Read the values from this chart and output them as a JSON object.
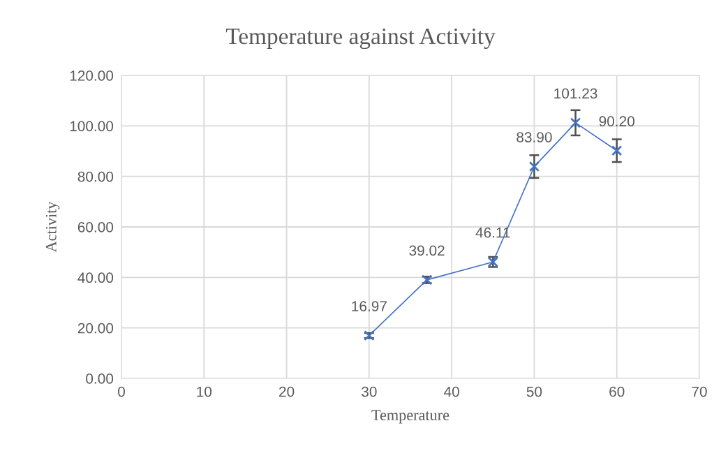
{
  "chart_data": {
    "type": "line",
    "title": "Temperature against Activity",
    "xlabel": "Temperature",
    "ylabel": "Activity",
    "x": [
      30,
      37,
      45,
      50,
      55,
      60
    ],
    "series": [
      {
        "color": "#4472c4",
        "values": [
          16.97,
          39.02,
          46.11,
          83.9,
          101.23,
          90.2
        ],
        "errors": [
          1,
          1.3,
          2,
          4.5,
          5,
          4.5
        ],
        "value_labels": [
          "16.97",
          "39.02",
          "46.11",
          "83.90",
          "101.23",
          "90.20"
        ]
      }
    ],
    "xlim": [
      0,
      70
    ],
    "xticks": [
      0,
      10,
      20,
      30,
      40,
      50,
      60,
      70
    ],
    "ylim": [
      0,
      120
    ],
    "yticks": [
      {
        "value": 0,
        "label": "0.00"
      },
      {
        "value": 20,
        "label": "20.00"
      },
      {
        "value": 40,
        "label": "40.00"
      },
      {
        "value": 60,
        "label": "60.00"
      },
      {
        "value": 80,
        "label": "80.00"
      },
      {
        "value": 100,
        "label": "100.00"
      },
      {
        "value": 120,
        "label": "120.00"
      }
    ],
    "grid": true,
    "marker": "cross",
    "line_style": "solid"
  }
}
